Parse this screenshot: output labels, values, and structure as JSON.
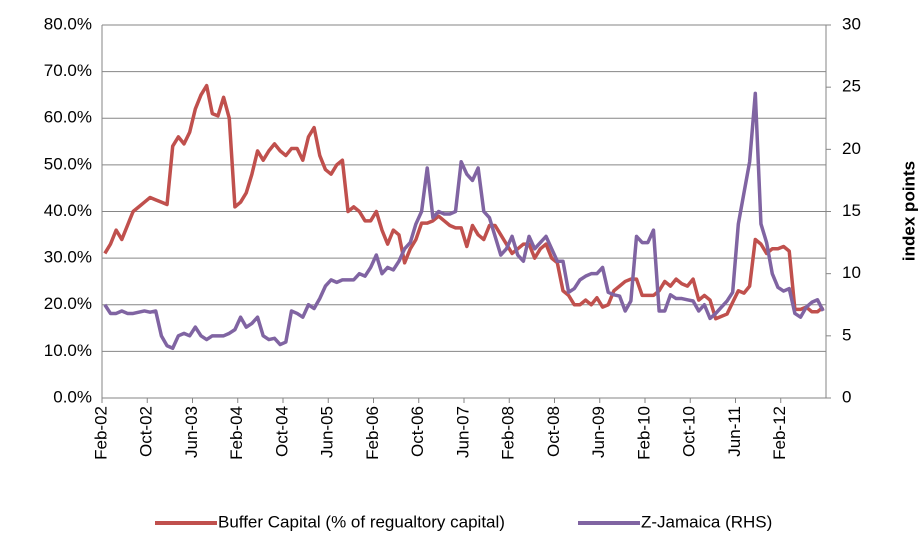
{
  "chart_data": {
    "type": "line",
    "categories": [
      "Feb-02",
      null,
      null,
      null,
      null,
      null,
      null,
      null,
      "Oct-02",
      null,
      null,
      null,
      null,
      null,
      null,
      null,
      "Jun-03",
      null,
      null,
      null,
      null,
      null,
      null,
      null,
      "Feb-04",
      null,
      null,
      null,
      null,
      null,
      null,
      null,
      "Oct-04",
      null,
      null,
      null,
      null,
      null,
      null,
      null,
      "Jun-05",
      null,
      null,
      null,
      null,
      null,
      null,
      null,
      "Feb-06",
      null,
      null,
      null,
      null,
      null,
      null,
      null,
      "Oct-06",
      null,
      null,
      null,
      null,
      null,
      null,
      null,
      "Jun-07",
      null,
      null,
      null,
      null,
      null,
      null,
      null,
      "Feb-08",
      null,
      null,
      null,
      null,
      null,
      null,
      null,
      "Oct-08",
      null,
      null,
      null,
      null,
      null,
      null,
      null,
      "Jun-09",
      null,
      null,
      null,
      null,
      null,
      null,
      null,
      "Feb-10",
      null,
      null,
      null,
      null,
      null,
      null,
      null,
      "Oct-10",
      null,
      null,
      null,
      null,
      null,
      null,
      null,
      "Jun-11",
      null,
      null,
      null,
      null,
      null,
      null,
      null,
      "Feb-12",
      null,
      null,
      null,
      null,
      null,
      null,
      null
    ],
    "series": [
      {
        "name": "Buffer Capital (% of regualtory capital)",
        "color": "#c0504d",
        "axis": "y",
        "values": [
          31,
          33,
          36,
          34,
          37,
          40,
          41,
          42,
          43,
          42.5,
          42,
          41.5,
          54,
          56,
          54.5,
          57,
          62,
          65,
          67,
          61,
          60.5,
          64.5,
          60,
          41,
          42,
          44,
          48,
          53,
          51,
          53,
          54.5,
          53,
          52,
          53.5,
          53.5,
          51,
          56,
          58,
          52,
          49,
          48,
          50,
          51,
          40,
          41,
          40,
          38,
          38,
          40,
          36,
          33,
          36,
          35,
          29,
          32,
          34,
          37.5,
          37.5,
          38,
          39,
          38,
          37,
          36.5,
          36.5,
          32.5,
          37,
          35,
          34,
          37,
          37,
          35,
          33,
          31,
          32,
          33,
          33,
          30,
          32,
          33,
          30,
          29,
          23,
          22,
          20,
          20,
          21,
          20,
          21.5,
          19.5,
          20,
          23,
          24,
          25,
          25.5,
          25.5,
          22,
          22,
          22,
          23,
          25,
          24,
          25.5,
          24.5,
          24,
          25.5,
          21,
          22,
          21,
          17,
          17.5,
          18,
          20.5,
          23,
          22.5,
          24,
          34,
          33,
          31,
          32,
          32,
          32.5,
          31.5,
          19,
          19,
          19.5,
          18.5,
          18.5,
          19.5
        ]
      },
      {
        "name": "Z-Jamaica (RHS)",
        "color": "#8064a2",
        "axis": "y2",
        "values": [
          7.5,
          6.8,
          6.8,
          7.0,
          6.8,
          6.8,
          6.9,
          7.0,
          6.9,
          7.0,
          5.0,
          4.2,
          4.0,
          5.0,
          5.2,
          5.0,
          5.7,
          5.0,
          4.7,
          5.0,
          5.0,
          5.0,
          5.2,
          5.5,
          6.5,
          5.7,
          6.0,
          6.5,
          5.0,
          4.7,
          4.8,
          4.3,
          4.5,
          7.0,
          6.8,
          6.5,
          7.5,
          7.2,
          8.0,
          9.0,
          9.5,
          9.3,
          9.5,
          9.5,
          9.5,
          10,
          9.8,
          10.5,
          11.5,
          10,
          10.5,
          10.3,
          11,
          12,
          12.5,
          14,
          15,
          18.5,
          14.5,
          15,
          14.8,
          14.8,
          15,
          19,
          18,
          17.5,
          18.5,
          15,
          14.5,
          13,
          11.5,
          12,
          13,
          11.5,
          11,
          13,
          12,
          12.5,
          13,
          12,
          11,
          11,
          8.5,
          8.8,
          9.5,
          9.8,
          10,
          10,
          10.5,
          8.5,
          8.3,
          8.2,
          7.0,
          7.8,
          13,
          12.5,
          12.5,
          13.5,
          7.0,
          7.0,
          8.3,
          8.0,
          8.0,
          7.9,
          7.8,
          7.0,
          7.5,
          6.4,
          6.8,
          7.3,
          7.8,
          8.5,
          14,
          16.5,
          19,
          24.5,
          14,
          12.5,
          10,
          8.9,
          8.6,
          8.8,
          6.8,
          6.5,
          7.3,
          7.7,
          7.9,
          7.0
        ]
      }
    ],
    "ylim": [
      0,
      80
    ],
    "yticks": [
      {
        "value": 0,
        "label": "0.0%"
      },
      {
        "value": 10,
        "label": "10.0%"
      },
      {
        "value": 20,
        "label": "20.0%"
      },
      {
        "value": 30,
        "label": "30.0%"
      },
      {
        "value": 40,
        "label": "40.0%"
      },
      {
        "value": 50,
        "label": "50.0%"
      },
      {
        "value": 60,
        "label": "60.0%"
      },
      {
        "value": 70,
        "label": "70.0%"
      },
      {
        "value": 80,
        "label": "80.0%"
      }
    ],
    "y2lim": [
      0,
      30
    ],
    "y2ticks": [
      0,
      5,
      10,
      15,
      20,
      25,
      30
    ],
    "y2label": "index points",
    "grid": true,
    "legend": "bottom"
  }
}
